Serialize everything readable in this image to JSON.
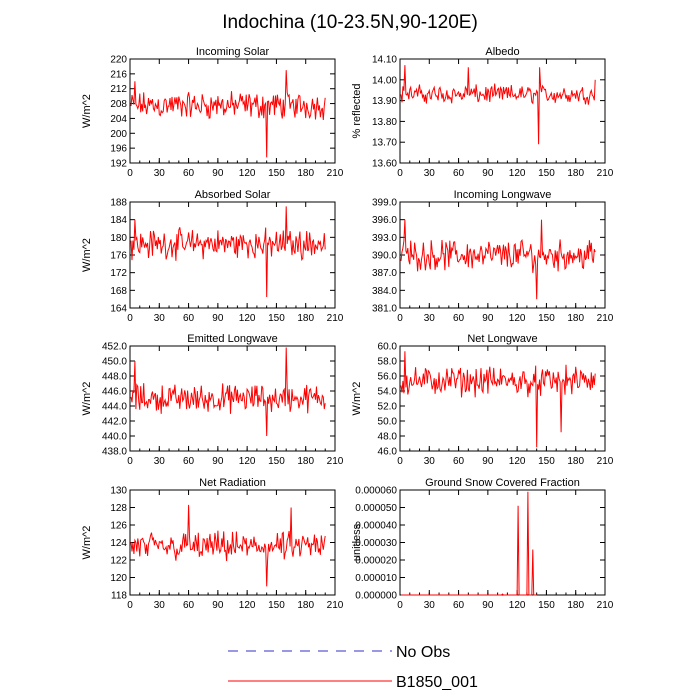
{
  "figure_title": "Indochina (10-23.5N,90-120E)",
  "legend": [
    {
      "label": "No Obs",
      "color": "#3030c8",
      "style": "dashed"
    },
    {
      "label": "B1850_001",
      "color": "#ff0000",
      "style": "solid"
    }
  ],
  "chart_data": [
    {
      "type": "line",
      "title": "Incoming Solar",
      "ylabel": "W/m^2",
      "xlim": [
        0,
        210
      ],
      "ylim": [
        192,
        220
      ],
      "xticks": [
        "0",
        "30",
        "60",
        "90",
        "120",
        "150",
        "180",
        "210"
      ],
      "yticks": [
        "192",
        "196",
        "200",
        "204",
        "208",
        "212",
        "216",
        "220"
      ],
      "series": [
        {
          "name": "B1850_001",
          "color": "#ff0000",
          "mean": 207.5,
          "amp": 3.3,
          "spikes": [
            [
              5,
              214
            ],
            [
              140,
              193.5
            ],
            [
              160,
              217
            ]
          ]
        }
      ]
    },
    {
      "type": "line",
      "title": "Albedo",
      "ylabel": "% reflected",
      "xlim": [
        0,
        210
      ],
      "ylim": [
        13.6,
        14.1
      ],
      "xticks": [
        "0",
        "30",
        "60",
        "90",
        "120",
        "150",
        "180",
        "210"
      ],
      "yticks": [
        "13.60",
        "13.70",
        "13.80",
        "13.90",
        "14.00",
        "14.10"
      ],
      "series": [
        {
          "name": "B1850_001",
          "color": "#ff0000",
          "mean": 13.93,
          "amp": 0.04,
          "spikes": [
            [
              5,
              14.07
            ],
            [
              70,
              14.06
            ],
            [
              142,
              13.69
            ],
            [
              143,
              14.06
            ],
            [
              200,
              14.0
            ]
          ]
        }
      ]
    },
    {
      "type": "line",
      "title": "Absorbed Solar",
      "ylabel": "W/m^2",
      "xlim": [
        0,
        210
      ],
      "ylim": [
        164,
        188
      ],
      "xticks": [
        "0",
        "30",
        "60",
        "90",
        "120",
        "150",
        "180",
        "210"
      ],
      "yticks": [
        "164",
        "168",
        "172",
        "176",
        "180",
        "184",
        "188"
      ],
      "series": [
        {
          "name": "B1850_001",
          "color": "#ff0000",
          "mean": 178.5,
          "amp": 3.0,
          "spikes": [
            [
              5,
              184
            ],
            [
              140,
              166.5
            ],
            [
              160,
              187
            ]
          ]
        }
      ]
    },
    {
      "type": "line",
      "title": "Incoming Longwave",
      "ylabel": "",
      "xlim": [
        0,
        210
      ],
      "ylim": [
        381,
        399
      ],
      "xticks": [
        "0",
        "30",
        "60",
        "90",
        "120",
        "150",
        "180",
        "210"
      ],
      "yticks": [
        "381.0",
        "384.0",
        "387.0",
        "390.0",
        "393.0",
        "396.0",
        "399.0"
      ],
      "series": [
        {
          "name": "B1850_001",
          "color": "#ff0000",
          "mean": 390.0,
          "amp": 2.3,
          "spikes": [
            [
              5,
              396
            ],
            [
              140,
              382.5
            ],
            [
              145,
              396
            ]
          ]
        }
      ]
    },
    {
      "type": "line",
      "title": "Emitted Longwave",
      "ylabel": "W/m^2",
      "xlim": [
        0,
        210
      ],
      "ylim": [
        438,
        452
      ],
      "xticks": [
        "0",
        "30",
        "60",
        "90",
        "120",
        "150",
        "180",
        "210"
      ],
      "yticks": [
        "438.0",
        "440.0",
        "442.0",
        "444.0",
        "446.0",
        "448.0",
        "450.0",
        "452.0"
      ],
      "series": [
        {
          "name": "B1850_001",
          "color": "#ff0000",
          "mean": 445.0,
          "amp": 1.7,
          "spikes": [
            [
              5,
              450
            ],
            [
              160,
              451.8
            ],
            [
              140,
              440
            ]
          ]
        }
      ]
    },
    {
      "type": "line",
      "title": "Net Longwave",
      "ylabel": "W/m^2",
      "xlim": [
        0,
        210
      ],
      "ylim": [
        46,
        60
      ],
      "xticks": [
        "0",
        "30",
        "60",
        "90",
        "120",
        "150",
        "180",
        "210"
      ],
      "yticks": [
        "46.0",
        "48.0",
        "50.0",
        "52.0",
        "54.0",
        "56.0",
        "58.0",
        "60.0"
      ],
      "series": [
        {
          "name": "B1850_001",
          "color": "#ff0000",
          "mean": 55.3,
          "amp": 1.7,
          "spikes": [
            [
              5,
              59.3
            ],
            [
              140,
              46.5
            ],
            [
              165,
              48.5
            ]
          ]
        }
      ]
    },
    {
      "type": "line",
      "title": "Net Radiation",
      "ylabel": "W/m^2",
      "xlim": [
        0,
        210
      ],
      "ylim": [
        118,
        130
      ],
      "xticks": [
        "0",
        "30",
        "60",
        "90",
        "120",
        "150",
        "180",
        "210"
      ],
      "yticks": [
        "118",
        "120",
        "122",
        "124",
        "126",
        "128",
        "130"
      ],
      "series": [
        {
          "name": "B1850_001",
          "color": "#ff0000",
          "mean": 123.5,
          "amp": 1.5,
          "spikes": [
            [
              60,
              128.3
            ],
            [
              140,
              119
            ],
            [
              165,
              128
            ]
          ]
        }
      ]
    },
    {
      "type": "line",
      "title": "Ground Snow Covered Fraction",
      "ylabel": "unitless",
      "xlim": [
        0,
        210
      ],
      "ylim": [
        0,
        6e-05
      ],
      "xticks": [
        "0",
        "30",
        "60",
        "90",
        "120",
        "150",
        "180",
        "210"
      ],
      "yticks": [
        "0.000000",
        "0.000010",
        "0.000020",
        "0.000030",
        "0.000040",
        "0.000050",
        "0.000060"
      ],
      "series": [
        {
          "name": "B1850_001",
          "color": "#ff0000",
          "mean": 0,
          "amp": 0,
          "spikes": [
            [
              105,
              5e-07
            ],
            [
              121,
              5.1e-05
            ],
            [
              131,
              5.9e-05
            ],
            [
              136,
              2.6e-05
            ]
          ]
        }
      ]
    }
  ]
}
